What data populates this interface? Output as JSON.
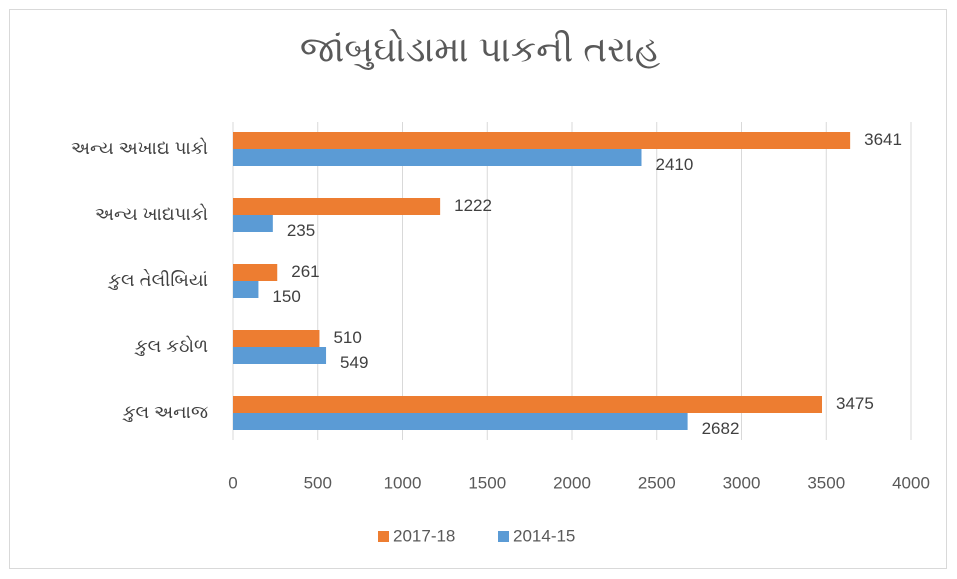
{
  "chart_data": {
    "type": "horizontal_bar",
    "title": "જાંબુઘોડામા પાકની તરાહ",
    "categories": [
      "અન્ય અખાદ્ય પાકો",
      "અન્ય ખાદ્યપાકો",
      "કુલ તેલીબિયાં",
      "કુલ કઠોળ",
      "કુલ અનાજ"
    ],
    "series": [
      {
        "name": "2017-18",
        "color": "#ed7d31",
        "values": [
          3641,
          1222,
          261,
          510,
          3475
        ]
      },
      {
        "name": "2014-15",
        "color": "#5b9bd5",
        "values": [
          2410,
          235,
          150,
          549,
          2682
        ]
      }
    ],
    "xlim": [
      0,
      4000
    ],
    "xticks": [
      0,
      500,
      1000,
      1500,
      2000,
      2500,
      3000,
      3500,
      4000
    ],
    "grid": true,
    "legend": "bottom"
  }
}
